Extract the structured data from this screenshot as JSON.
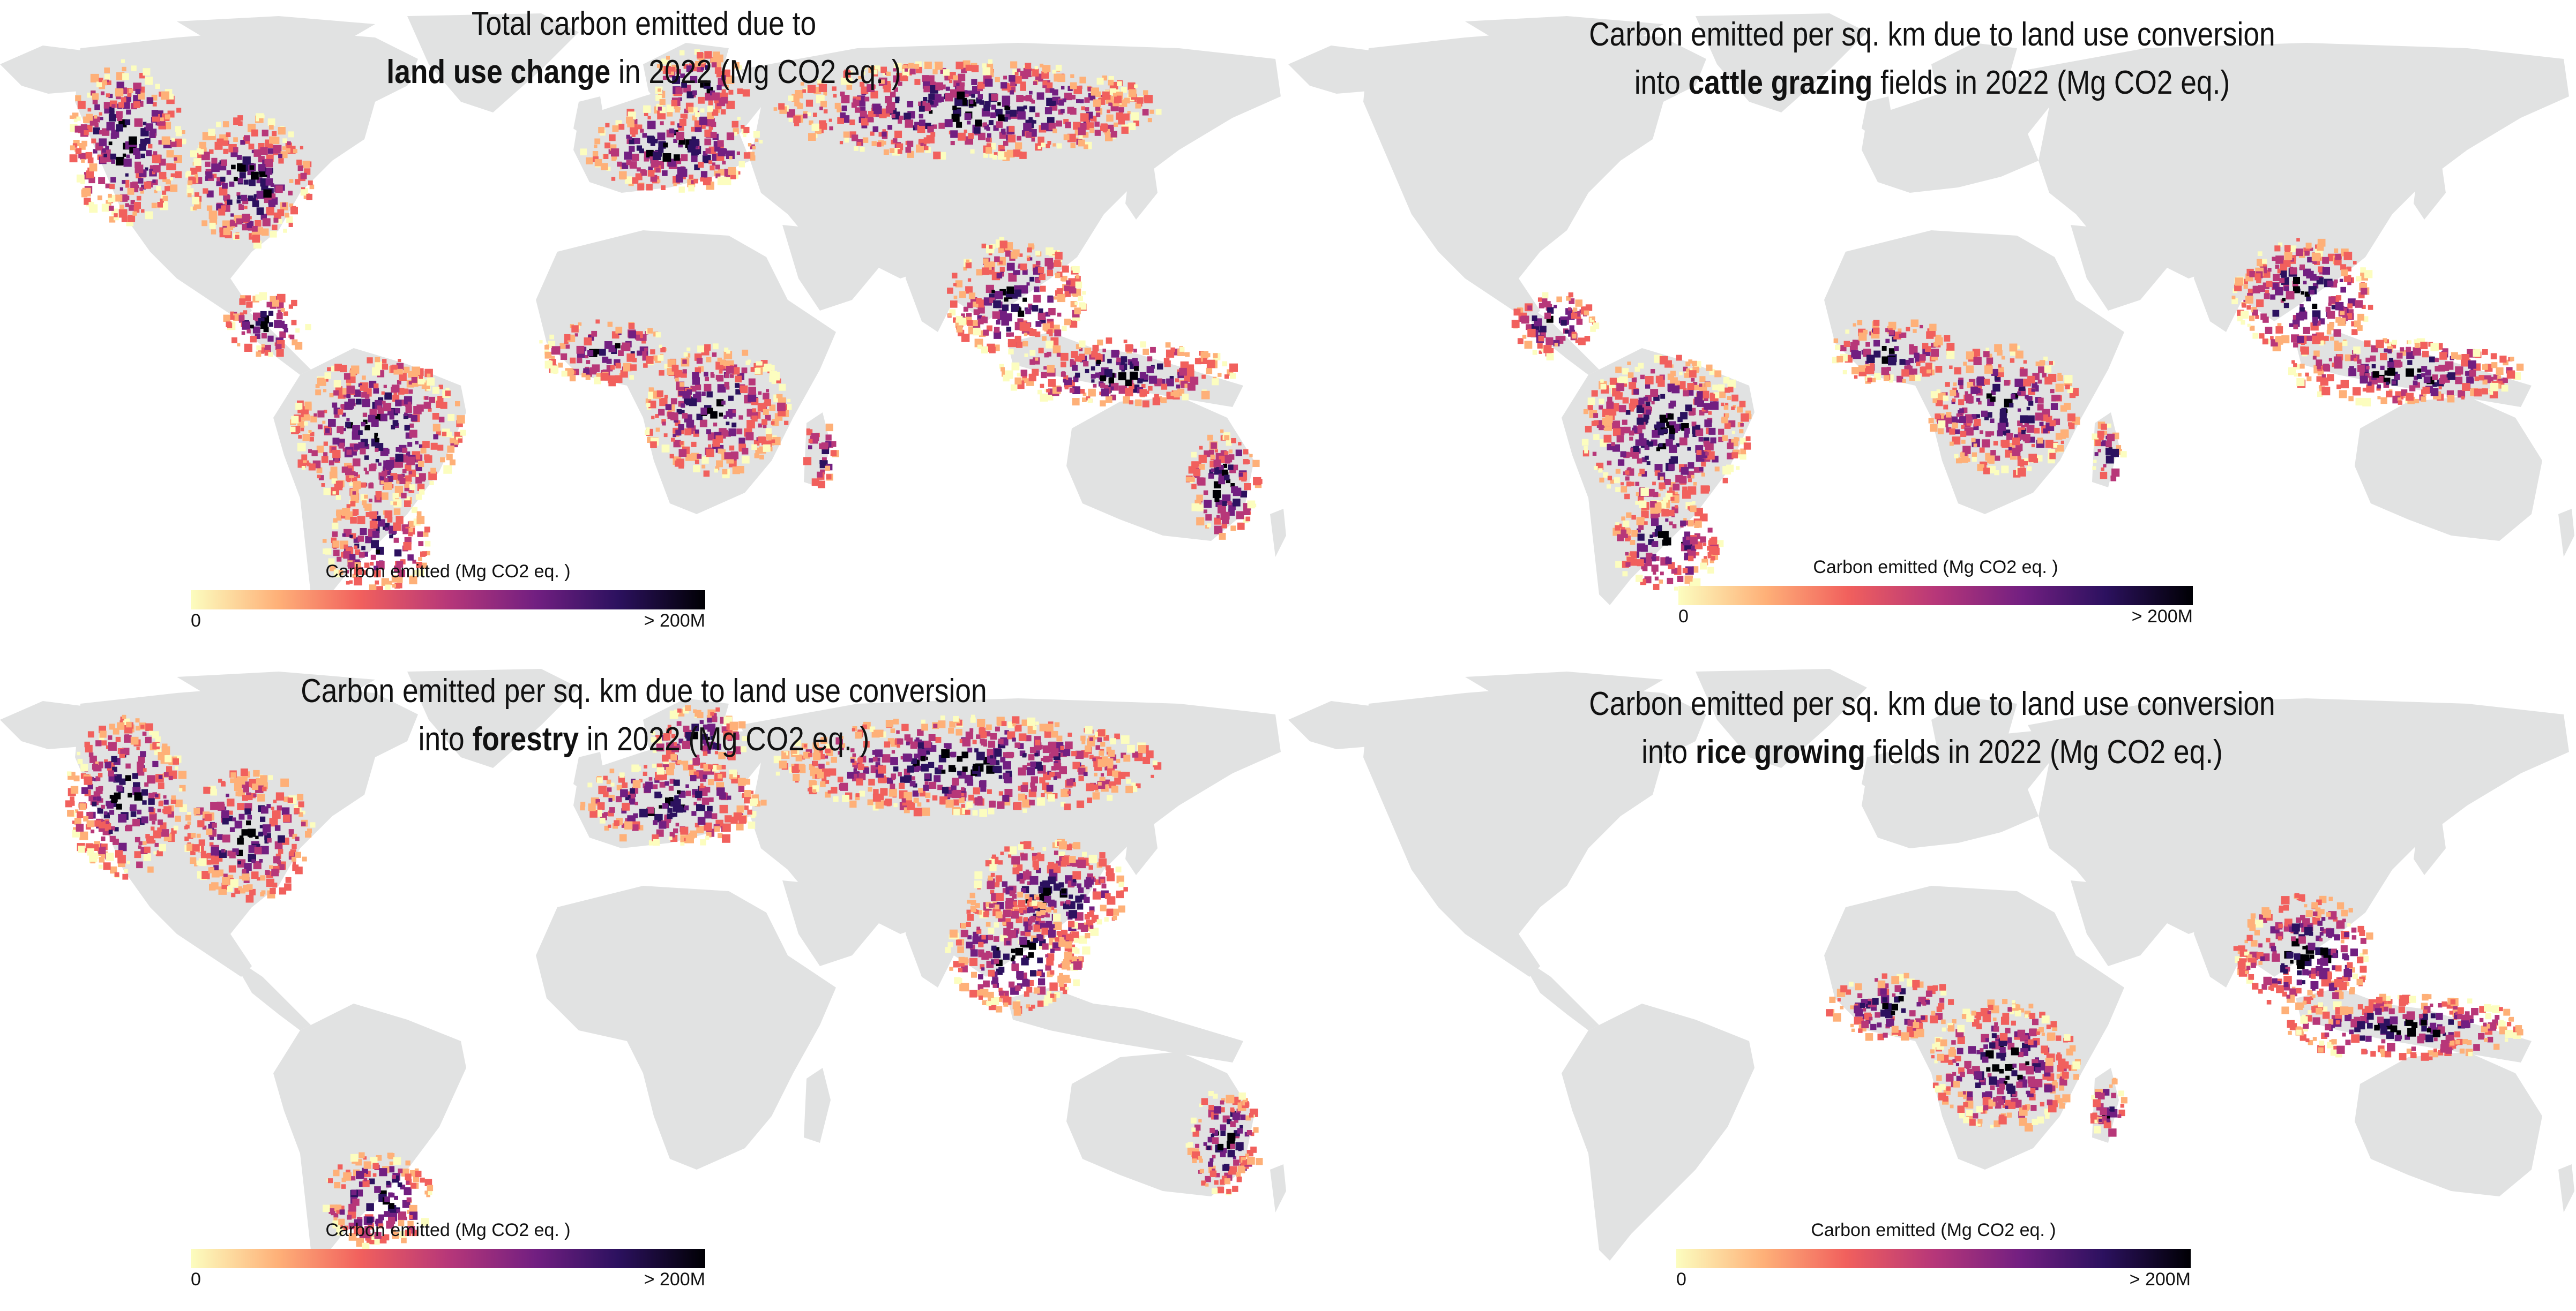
{
  "colors": {
    "land": "#e1e2e2",
    "colormap": [
      "#fcfdbf",
      "#feb078",
      "#f1605d",
      "#b73779",
      "#721f81",
      "#2c115f",
      "#000004"
    ]
  },
  "panels": [
    {
      "title_lines": [
        [
          {
            "text": "Total carbon emitted due to",
            "bold": false
          }
        ],
        [
          {
            "text": "land use change",
            "bold": true
          },
          {
            "text": " in 2022 (Mg CO2 eq. )",
            "bold": false
          }
        ]
      ],
      "legend": {
        "title": "Carbon emitted (Mg CO2 eq. )",
        "min_label": "0",
        "max_label": "> 200M"
      },
      "hotspot_regions": [
        "western-north-america",
        "eastern-united-states",
        "central-america",
        "amazon",
        "south-america-south",
        "west-africa",
        "congo-basin",
        "madagascar",
        "europe",
        "scandinavia",
        "russia",
        "southeast-asia",
        "indonesia",
        "eastern-australia"
      ]
    },
    {
      "title_lines": [
        [
          {
            "text": "Carbon emitted per sq. km due to land use conversion",
            "bold": false
          }
        ],
        [
          {
            "text": "into ",
            "bold": false
          },
          {
            "text": "cattle grazing",
            "bold": true
          },
          {
            "text": " fields in 2022 (Mg CO2 eq.)",
            "bold": false
          }
        ]
      ],
      "legend": {
        "title": "Carbon emitted (Mg CO2 eq. )",
        "min_label": "0",
        "max_label": "> 200M"
      },
      "hotspot_regions": [
        "central-america",
        "amazon",
        "south-america-south",
        "west-africa",
        "congo-basin",
        "madagascar",
        "southeast-asia",
        "indonesia"
      ]
    },
    {
      "title_lines": [
        [
          {
            "text": "Carbon emitted per sq. km due to land use conversion",
            "bold": false
          }
        ],
        [
          {
            "text": "into ",
            "bold": false
          },
          {
            "text": "forestry",
            "bold": true
          },
          {
            "text": " in 2022 (Mg CO2 eq. )",
            "bold": false
          }
        ]
      ],
      "legend": {
        "title": "Carbon emitted (Mg CO2 eq. )",
        "min_label": "0",
        "max_label": "> 200M"
      },
      "hotspot_regions": [
        "western-north-america",
        "eastern-united-states",
        "south-america-south",
        "europe",
        "scandinavia",
        "russia",
        "china",
        "southeast-asia",
        "eastern-australia"
      ]
    },
    {
      "title_lines": [
        [
          {
            "text": "Carbon emitted per sq. km due to land use conversion",
            "bold": false
          }
        ],
        [
          {
            "text": "into ",
            "bold": false
          },
          {
            "text": "rice growing",
            "bold": true
          },
          {
            "text": " fields in 2022 (Mg CO2 eq.)",
            "bold": false
          }
        ]
      ],
      "legend": {
        "title": "Carbon emitted (Mg CO2 eq. )",
        "min_label": "0",
        "max_label": "> 200M"
      },
      "hotspot_regions": [
        "west-africa",
        "congo-basin",
        "madagascar",
        "southeast-asia",
        "indonesia"
      ]
    }
  ]
}
